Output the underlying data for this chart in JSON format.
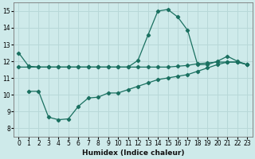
{
  "xlabel": "Humidex (Indice chaleur)",
  "bg_color": "#ceeaea",
  "grid_color": "#b8d8d8",
  "line_color": "#1a7060",
  "xlim": [
    -0.5,
    23.5
  ],
  "ylim": [
    7.5,
    15.5
  ],
  "xticks": [
    0,
    1,
    2,
    3,
    4,
    5,
    6,
    7,
    8,
    9,
    10,
    11,
    12,
    13,
    14,
    15,
    16,
    17,
    18,
    19,
    20,
    21,
    22,
    23
  ],
  "yticks": [
    8,
    9,
    10,
    11,
    12,
    13,
    14,
    15
  ],
  "line1_x": [
    0,
    1,
    2,
    3,
    4,
    5,
    6,
    7,
    8,
    9,
    10,
    11,
    12,
    13,
    14,
    15,
    16,
    17,
    18,
    19,
    20,
    21,
    22,
    23
  ],
  "line1_y": [
    12.5,
    11.7,
    11.65,
    11.65,
    11.65,
    11.65,
    11.65,
    11.65,
    11.65,
    11.65,
    11.65,
    11.65,
    12.05,
    13.55,
    15.0,
    15.1,
    14.65,
    13.85,
    11.8,
    11.8,
    12.0,
    12.3,
    12.0,
    11.8
  ],
  "line2_x": [
    0,
    1,
    2,
    3,
    4,
    5,
    6,
    7,
    8,
    9,
    10,
    11,
    12,
    13,
    14,
    15,
    16,
    17,
    18,
    19,
    20,
    21,
    22,
    23
  ],
  "line2_y": [
    11.65,
    11.65,
    11.65,
    11.65,
    11.65,
    11.65,
    11.65,
    11.65,
    11.65,
    11.65,
    11.65,
    11.65,
    11.65,
    11.65,
    11.65,
    11.65,
    11.7,
    11.75,
    11.85,
    11.9,
    11.95,
    11.95,
    11.95,
    11.8
  ],
  "line3_x": [
    1,
    2,
    3,
    4,
    5,
    6,
    7,
    8,
    9,
    10,
    11,
    12,
    13,
    14,
    15,
    16,
    17,
    18,
    19,
    20,
    21,
    22,
    23
  ],
  "line3_y": [
    10.2,
    10.2,
    8.65,
    8.5,
    8.55,
    9.3,
    9.8,
    9.85,
    10.1,
    10.1,
    10.3,
    10.5,
    10.7,
    10.9,
    11.0,
    11.1,
    11.2,
    11.4,
    11.6,
    11.8,
    11.95,
    11.95,
    11.8
  ]
}
